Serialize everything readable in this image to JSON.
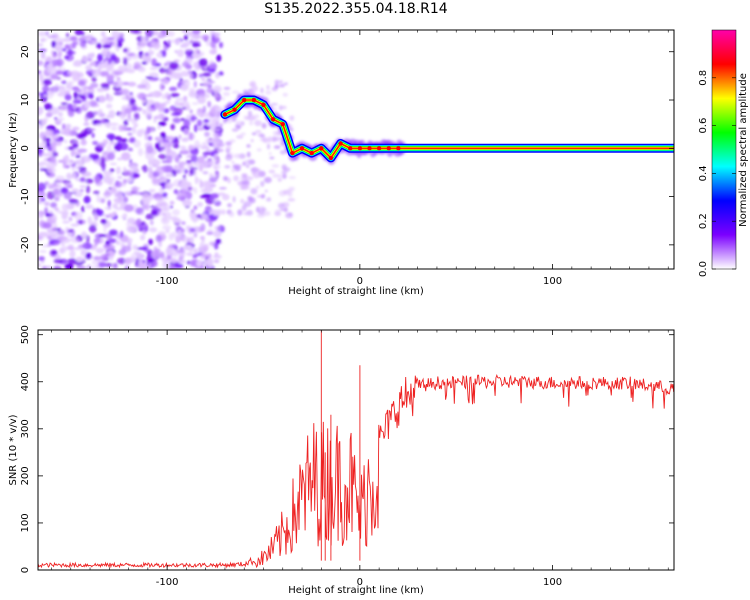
{
  "title": "S135.2022.355.04.18.R14",
  "chart_data": [
    {
      "type": "heatmap",
      "xlabel": "Height of straight line (km)",
      "ylabel": "Frequency (Hz)",
      "xlim": [
        -167,
        163
      ],
      "ylim": [
        -25,
        24.5
      ],
      "xticks": [
        -100,
        0,
        100
      ],
      "yticks": [
        -20,
        -10,
        0,
        10,
        20
      ],
      "colorbar": {
        "label": "Normalized spectral amplitude",
        "range": [
          0,
          1
        ],
        "ticks": [
          "0.0",
          "0.2",
          "0.4",
          "0.6",
          "0.8"
        ],
        "colors": [
          "#ffffff",
          "#7b00ff",
          "#0000ff",
          "#00ffff",
          "#00ff00",
          "#ffff00",
          "#ff0000",
          "#ff00aa"
        ]
      },
      "doppler_ridge": {
        "x": [
          -70,
          -65,
          -60,
          -55,
          -50,
          -45,
          -40,
          -35,
          -30,
          -25,
          -20,
          -15,
          -10,
          -5,
          0,
          5,
          10,
          15,
          20,
          163
        ],
        "y": [
          7,
          8,
          10,
          10,
          9,
          6,
          5,
          -1,
          0,
          -1,
          0,
          -2,
          1,
          0,
          0,
          0,
          0,
          0,
          0,
          0
        ]
      }
    },
    {
      "type": "line",
      "xlabel": "Height of straight line (km)",
      "ylabel": "SNR (10 * v/v)",
      "xlim": [
        -167,
        163
      ],
      "ylim": [
        0,
        510
      ],
      "xticks": [
        -100,
        0,
        100
      ],
      "yticks": [
        0,
        100,
        200,
        300,
        400,
        500
      ],
      "color": "#ee2222",
      "series": [
        {
          "x": [
            -167,
            -100,
            -70,
            -60,
            -55,
            -50,
            -45,
            -40,
            -35,
            -30,
            -25,
            -20,
            -15,
            -10,
            -5,
            0,
            5,
            10,
            15,
            20,
            25,
            30,
            40,
            50,
            60,
            80,
            100,
            120,
            140,
            163
          ],
          "values": [
            10,
            10,
            10,
            12,
            20,
            35,
            60,
            100,
            150,
            200,
            250,
            250,
            250,
            250,
            250,
            150,
            250,
            280,
            320,
            360,
            380,
            390,
            398,
            398,
            400,
            400,
            398,
            398,
            397,
            385
          ]
        }
      ],
      "spikes": {
        "x": [
          -20,
          -18,
          -15,
          0
        ],
        "values": [
          510,
          250,
          330,
          435
        ]
      }
    }
  ]
}
